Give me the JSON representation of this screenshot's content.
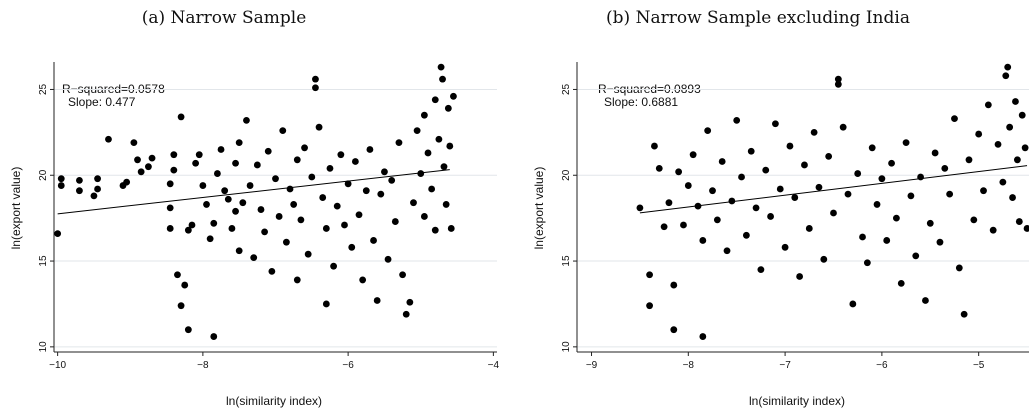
{
  "chart_data": [
    {
      "type": "scatter",
      "title": "(a) Narrow Sample",
      "xlabel": "ln(similarity index)",
      "ylabel": "ln(export value)",
      "xlim": [
        -10.05,
        -3.95
      ],
      "ylim": [
        9.7,
        26.6
      ],
      "xticks": [
        -10,
        -8,
        -6,
        -4
      ],
      "yticks": [
        10,
        15,
        20,
        25
      ],
      "grid": "horizontal",
      "annotation": {
        "r_squared": "R−squared=0.0578",
        "slope": "Slope: 0.477"
      },
      "fit_line": {
        "x": [
          -10.0,
          -4.6
        ],
        "y": [
          17.75,
          20.33
        ]
      },
      "points": [
        [
          -10.0,
          16.6
        ],
        [
          -9.95,
          19.4
        ],
        [
          -9.95,
          19.8
        ],
        [
          -9.7,
          19.1
        ],
        [
          -9.7,
          19.7
        ],
        [
          -9.5,
          18.8
        ],
        [
          -9.45,
          19.2
        ],
        [
          -9.45,
          19.8
        ],
        [
          -9.3,
          22.1
        ],
        [
          -9.1,
          19.4
        ],
        [
          -9.05,
          19.6
        ],
        [
          -8.95,
          21.9
        ],
        [
          -8.85,
          20.2
        ],
        [
          -8.9,
          20.9
        ],
        [
          -8.75,
          20.5
        ],
        [
          -8.7,
          21.0
        ],
        [
          -8.45,
          16.9
        ],
        [
          -8.45,
          18.1
        ],
        [
          -8.45,
          19.5
        ],
        [
          -8.4,
          20.3
        ],
        [
          -8.4,
          21.2
        ],
        [
          -8.35,
          14.2
        ],
        [
          -8.3,
          12.4
        ],
        [
          -8.3,
          23.4
        ],
        [
          -8.2,
          11.0
        ],
        [
          -8.25,
          13.6
        ],
        [
          -8.2,
          16.8
        ],
        [
          -8.15,
          17.1
        ],
        [
          -8.1,
          20.7
        ],
        [
          -8.05,
          21.2
        ],
        [
          -8.0,
          19.4
        ],
        [
          -7.95,
          18.3
        ],
        [
          -7.9,
          16.3
        ],
        [
          -7.85,
          10.6
        ],
        [
          -7.85,
          17.2
        ],
        [
          -7.8,
          20.1
        ],
        [
          -7.75,
          21.5
        ],
        [
          -7.7,
          19.1
        ],
        [
          -7.65,
          18.6
        ],
        [
          -7.6,
          16.9
        ],
        [
          -7.55,
          17.9
        ],
        [
          -7.55,
          20.7
        ],
        [
          -7.5,
          15.6
        ],
        [
          -7.5,
          21.9
        ],
        [
          -7.45,
          18.4
        ],
        [
          -7.4,
          23.2
        ],
        [
          -7.35,
          19.4
        ],
        [
          -7.3,
          15.2
        ],
        [
          -7.25,
          20.6
        ],
        [
          -7.2,
          18.0
        ],
        [
          -7.15,
          16.7
        ],
        [
          -7.1,
          21.4
        ],
        [
          -7.05,
          14.4
        ],
        [
          -7.0,
          19.8
        ],
        [
          -6.95,
          17.6
        ],
        [
          -6.9,
          22.6
        ],
        [
          -6.85,
          16.1
        ],
        [
          -6.8,
          19.2
        ],
        [
          -6.75,
          18.3
        ],
        [
          -6.7,
          13.9
        ],
        [
          -6.7,
          20.9
        ],
        [
          -6.65,
          17.4
        ],
        [
          -6.6,
          21.6
        ],
        [
          -6.55,
          15.4
        ],
        [
          -6.5,
          19.9
        ],
        [
          -6.45,
          25.6
        ],
        [
          -6.45,
          25.1
        ],
        [
          -6.4,
          22.8
        ],
        [
          -6.35,
          18.7
        ],
        [
          -6.3,
          16.9
        ],
        [
          -6.3,
          12.5
        ],
        [
          -6.25,
          20.4
        ],
        [
          -6.2,
          14.7
        ],
        [
          -6.15,
          18.2
        ],
        [
          -6.1,
          21.2
        ],
        [
          -6.05,
          17.1
        ],
        [
          -6.0,
          19.5
        ],
        [
          -5.95,
          15.8
        ],
        [
          -5.9,
          20.8
        ],
        [
          -5.85,
          17.7
        ],
        [
          -5.8,
          13.9
        ],
        [
          -5.75,
          19.1
        ],
        [
          -5.7,
          21.5
        ],
        [
          -5.65,
          16.2
        ],
        [
          -5.6,
          12.7
        ],
        [
          -5.55,
          18.9
        ],
        [
          -5.5,
          20.2
        ],
        [
          -5.45,
          15.1
        ],
        [
          -5.4,
          19.7
        ],
        [
          -5.35,
          17.3
        ],
        [
          -5.3,
          21.9
        ],
        [
          -5.25,
          14.2
        ],
        [
          -5.2,
          11.9
        ],
        [
          -5.15,
          12.6
        ],
        [
          -5.1,
          18.4
        ],
        [
          -5.05,
          22.6
        ],
        [
          -5.0,
          20.1
        ],
        [
          -4.95,
          23.5
        ],
        [
          -4.95,
          17.6
        ],
        [
          -4.9,
          21.3
        ],
        [
          -4.85,
          19.2
        ],
        [
          -4.8,
          24.4
        ],
        [
          -4.8,
          16.8
        ],
        [
          -4.75,
          22.1
        ],
        [
          -4.72,
          26.3
        ],
        [
          -4.7,
          25.6
        ],
        [
          -4.68,
          20.5
        ],
        [
          -4.65,
          18.3
        ],
        [
          -4.62,
          23.9
        ],
        [
          -4.6,
          21.7
        ],
        [
          -4.58,
          16.9
        ],
        [
          -4.55,
          24.6
        ]
      ]
    },
    {
      "type": "scatter",
      "title": "(b) Narrow Sample excluding India",
      "xlabel": "ln(similarity index)",
      "ylabel": "ln(export value)",
      "xlim": [
        -9.15,
        -4.48
      ],
      "ylim": [
        9.7,
        26.6
      ],
      "xticks": [
        -9,
        -8,
        -7,
        -6,
        -5
      ],
      "yticks": [
        10,
        15,
        20,
        25
      ],
      "grid": "horizontal",
      "annotation": {
        "r_squared": "R−squared=0.0893",
        "slope": "Slope: 0.6881"
      },
      "fit_line": {
        "x": [
          -8.5,
          -4.5
        ],
        "y": [
          17.81,
          20.56
        ]
      },
      "points": [
        [
          -8.5,
          18.1
        ],
        [
          -8.4,
          14.2
        ],
        [
          -8.4,
          12.4
        ],
        [
          -8.35,
          21.7
        ],
        [
          -8.3,
          20.4
        ],
        [
          -8.25,
          17.0
        ],
        [
          -8.2,
          18.4
        ],
        [
          -8.15,
          13.6
        ],
        [
          -8.15,
          11.0
        ],
        [
          -8.1,
          20.2
        ],
        [
          -8.05,
          17.1
        ],
        [
          -8.0,
          19.4
        ],
        [
          -7.95,
          21.2
        ],
        [
          -7.9,
          18.2
        ],
        [
          -7.85,
          10.6
        ],
        [
          -7.85,
          16.2
        ],
        [
          -7.8,
          22.6
        ],
        [
          -7.75,
          19.1
        ],
        [
          -7.7,
          17.4
        ],
        [
          -7.65,
          20.8
        ],
        [
          -7.6,
          15.6
        ],
        [
          -7.55,
          18.5
        ],
        [
          -7.5,
          23.2
        ],
        [
          -7.45,
          19.9
        ],
        [
          -7.4,
          16.5
        ],
        [
          -7.35,
          21.4
        ],
        [
          -7.3,
          18.1
        ],
        [
          -7.25,
          14.5
        ],
        [
          -7.2,
          20.3
        ],
        [
          -7.15,
          17.6
        ],
        [
          -7.1,
          23.0
        ],
        [
          -7.05,
          19.2
        ],
        [
          -7.0,
          15.8
        ],
        [
          -6.95,
          21.7
        ],
        [
          -6.9,
          18.7
        ],
        [
          -6.85,
          14.1
        ],
        [
          -6.8,
          20.6
        ],
        [
          -6.75,
          16.9
        ],
        [
          -6.7,
          22.5
        ],
        [
          -6.65,
          19.3
        ],
        [
          -6.6,
          15.1
        ],
        [
          -6.55,
          21.1
        ],
        [
          -6.5,
          17.8
        ],
        [
          -6.45,
          25.6
        ],
        [
          -6.45,
          25.3
        ],
        [
          -6.4,
          22.8
        ],
        [
          -6.35,
          18.9
        ],
        [
          -6.3,
          12.5
        ],
        [
          -6.25,
          20.1
        ],
        [
          -6.2,
          16.4
        ],
        [
          -6.15,
          14.9
        ],
        [
          -6.1,
          21.6
        ],
        [
          -6.05,
          18.3
        ],
        [
          -6.0,
          19.8
        ],
        [
          -5.95,
          16.2
        ],
        [
          -5.9,
          20.7
        ],
        [
          -5.85,
          17.5
        ],
        [
          -5.8,
          13.7
        ],
        [
          -5.75,
          21.9
        ],
        [
          -5.7,
          18.8
        ],
        [
          -5.65,
          15.3
        ],
        [
          -5.6,
          19.9
        ],
        [
          -5.55,
          12.7
        ],
        [
          -5.5,
          17.2
        ],
        [
          -5.45,
          21.3
        ],
        [
          -5.4,
          16.1
        ],
        [
          -5.35,
          20.4
        ],
        [
          -5.3,
          18.9
        ],
        [
          -5.25,
          23.3
        ],
        [
          -5.2,
          14.6
        ],
        [
          -5.15,
          11.9
        ],
        [
          -5.1,
          20.9
        ],
        [
          -5.05,
          17.4
        ],
        [
          -5.0,
          22.4
        ],
        [
          -4.95,
          19.1
        ],
        [
          -4.9,
          24.1
        ],
        [
          -4.85,
          16.8
        ],
        [
          -4.8,
          21.8
        ],
        [
          -4.75,
          19.6
        ],
        [
          -4.72,
          25.8
        ],
        [
          -4.7,
          26.3
        ],
        [
          -4.68,
          22.8
        ],
        [
          -4.65,
          18.7
        ],
        [
          -4.62,
          24.3
        ],
        [
          -4.6,
          20.9
        ],
        [
          -4.58,
          17.3
        ],
        [
          -4.55,
          23.5
        ],
        [
          -4.52,
          21.6
        ],
        [
          -4.5,
          16.9
        ]
      ]
    }
  ]
}
